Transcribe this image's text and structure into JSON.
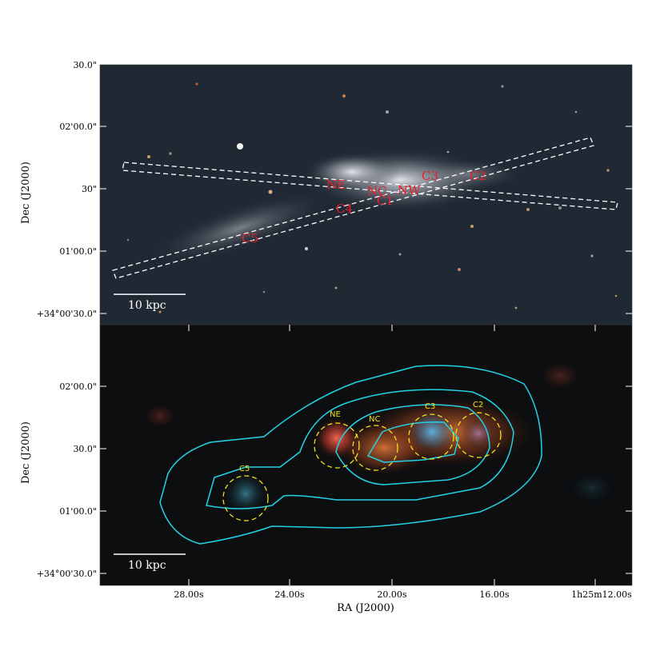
{
  "colors": {
    "top_panel_bg": "#202833",
    "bottom_panel_bg": "#0c0e10",
    "slit": "#ffffff",
    "label_red": "#e8202a",
    "aperture_yellow": "#f2e21c",
    "contour_cyan": "#22d3e6"
  },
  "top_panel": {
    "ylabel": "Dec (J2000)",
    "yticks": [
      "30.0\"",
      "02'00.0\"",
      "30\"",
      "01'00.0\"",
      "+34°00'30.0\""
    ],
    "scale_bar": "10 kpc",
    "region_labels": [
      "NE",
      "NC",
      "C1",
      "NW",
      "C3",
      "C2",
      "C4",
      "C5"
    ]
  },
  "bottom_panel": {
    "ylabel": "Dec (J2000)",
    "yticks": [
      "02'00.0\"",
      "30.0\"",
      "01'00.0\"",
      "+34°00'30.0\""
    ],
    "xlabel": "RA (J2000)",
    "xticks": [
      "28.00s",
      "24.00s",
      "20.00s",
      "16.00s",
      "1h25m12.00s"
    ],
    "scale_bar": "10 kpc",
    "aperture_labels": [
      "NE",
      "NC",
      "C3",
      "C2",
      "C5"
    ]
  }
}
